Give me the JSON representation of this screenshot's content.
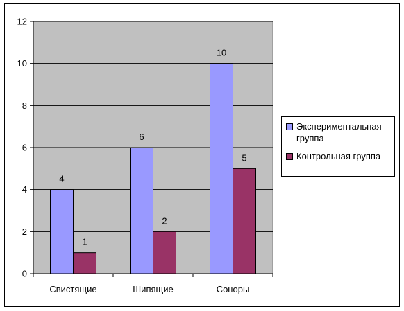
{
  "chart_data": {
    "type": "bar",
    "categories": [
      "Свистящие",
      "Шипящие",
      "Соноры"
    ],
    "series": [
      {
        "name": "Экспериментальная группа",
        "values": [
          4,
          6,
          10
        ],
        "color": "#9999FF"
      },
      {
        "name": "Контрольная группа",
        "values": [
          1,
          2,
          5
        ],
        "color": "#993366"
      }
    ],
    "ylim": [
      0,
      12
    ],
    "yticks": [
      0,
      2,
      4,
      6,
      8,
      10,
      12
    ],
    "grid": true,
    "plot_background": "#C0C0C0",
    "legend_position": "right",
    "data_labels": true
  }
}
